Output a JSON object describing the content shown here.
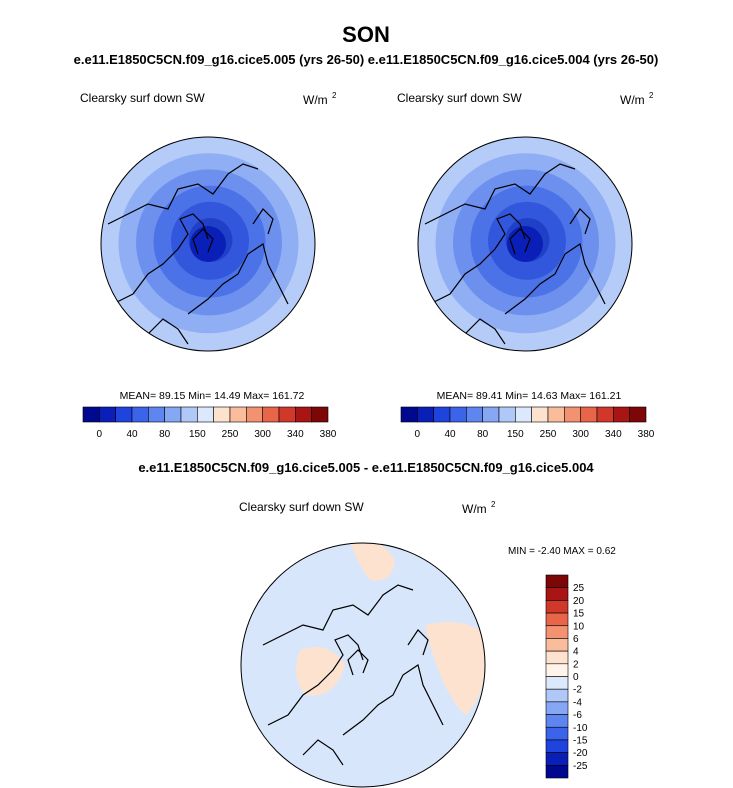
{
  "title": "SON",
  "subtitle": "e.e11.E1850C5CN.f09_g16.cice5.005 (yrs 26-50)  e.e11.E1850C5CN.f09_g16.cice5.004 (yrs 26-50)",
  "panels": [
    {
      "label": "Clearsky surf down SW",
      "units": "W/m",
      "units_sup": "2",
      "stats": "MEAN=  89.15  Min=  14.49  Max= 161.72",
      "colorbar_labels": [
        "0",
        "40",
        "80",
        "150",
        "250",
        "300",
        "340",
        "380"
      ]
    },
    {
      "label": "Clearsky surf down SW",
      "units": "W/m",
      "units_sup": "2",
      "stats": "MEAN=  89.41  Min=  14.63  Max= 161.21",
      "colorbar_labels": [
        "0",
        "40",
        "80",
        "150",
        "250",
        "300",
        "340",
        "380"
      ]
    }
  ],
  "diff": {
    "title": "e.e11.E1850C5CN.f09_g16.cice5.005 - e.e11.E1850C5CN.f09_g16.cice5.004",
    "label": "Clearsky surf down SW",
    "units": "W/m",
    "units_sup": "2",
    "minmax": "MIN =  -2.40 MAX =   0.62",
    "colorbar_labels": [
      "25",
      "20",
      "15",
      "10",
      "6",
      "4",
      "2",
      "0",
      "-2",
      "-4",
      "-6",
      "-10",
      "-15",
      "-20",
      "-25"
    ]
  }
}
